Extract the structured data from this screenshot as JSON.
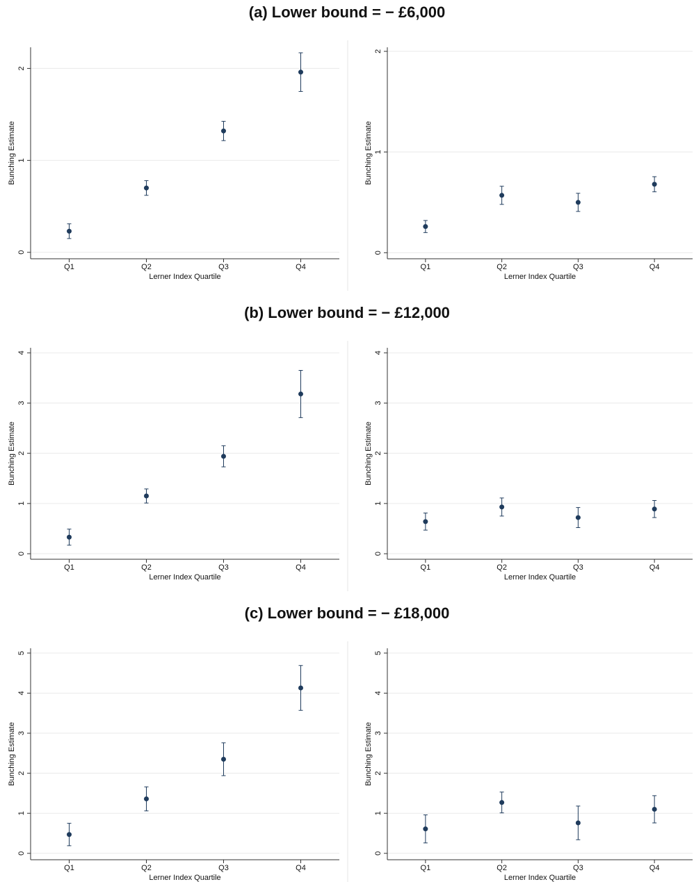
{
  "sections": [
    {
      "title": "(a) Lower bound = − £6,000"
    },
    {
      "title": "(b) Lower bound = − £12,000"
    },
    {
      "title": "(c) Lower bound = − £18,000"
    }
  ],
  "chart_data": [
    {
      "type": "errorbar",
      "ylabel": "Bunching Estimate",
      "xlabel": "Lerner Index Quartile",
      "categories": [
        "Q1",
        "Q2",
        "Q3",
        "Q4"
      ],
      "values": [
        0.23,
        0.7,
        1.32,
        1.96
      ],
      "errors": [
        0.08,
        0.08,
        0.105,
        0.21
      ],
      "ylim": [
        -0.07,
        2.23
      ],
      "yticks": [
        0,
        1,
        2
      ],
      "color": "#1f3b5c",
      "grid": true
    },
    {
      "type": "errorbar",
      "ylabel": "Bunching Estimate",
      "xlabel": "Lerner Index Quartile",
      "categories": [
        "Q1",
        "Q2",
        "Q3",
        "Q4"
      ],
      "values": [
        0.26,
        0.57,
        0.5,
        0.68
      ],
      "errors": [
        0.06,
        0.09,
        0.09,
        0.075
      ],
      "ylim": [
        -0.06,
        2.04
      ],
      "yticks": [
        0,
        1,
        2
      ],
      "color": "#1f3b5c",
      "grid": true
    },
    {
      "type": "errorbar",
      "ylabel": "Bunching Estimate",
      "xlabel": "Lerner Index Quartile",
      "categories": [
        "Q1",
        "Q2",
        "Q3",
        "Q4"
      ],
      "values": [
        0.33,
        1.15,
        1.94,
        3.18
      ],
      "errors": [
        0.16,
        0.14,
        0.21,
        0.47
      ],
      "ylim": [
        -0.11,
        4.1
      ],
      "yticks": [
        0,
        1,
        2,
        3,
        4
      ],
      "color": "#1f3b5c",
      "grid": true
    },
    {
      "type": "errorbar",
      "ylabel": "Bunching Estimate",
      "xlabel": "Lerner Index Quartile",
      "categories": [
        "Q1",
        "Q2",
        "Q3",
        "Q4"
      ],
      "values": [
        0.64,
        0.93,
        0.72,
        0.89
      ],
      "errors": [
        0.17,
        0.18,
        0.2,
        0.17
      ],
      "ylim": [
        -0.11,
        4.1
      ],
      "yticks": [
        0,
        1,
        2,
        3,
        4
      ],
      "color": "#1f3b5c",
      "grid": true
    },
    {
      "type": "errorbar",
      "ylabel": "Bunching Estimate",
      "xlabel": "Lerner Index Quartile",
      "categories": [
        "Q1",
        "Q2",
        "Q3",
        "Q4"
      ],
      "values": [
        0.47,
        1.36,
        2.35,
        4.13
      ],
      "errors": [
        0.28,
        0.3,
        0.41,
        0.56
      ],
      "ylim": [
        -0.16,
        5.12
      ],
      "yticks": [
        0,
        1,
        2,
        3,
        4,
        5
      ],
      "color": "#1f3b5c",
      "grid": true
    },
    {
      "type": "errorbar",
      "ylabel": "Bunching Estimate",
      "xlabel": "Lerner Index Quartile",
      "categories": [
        "Q1",
        "Q2",
        "Q3",
        "Q4"
      ],
      "values": [
        0.61,
        1.27,
        0.76,
        1.1
      ],
      "errors": [
        0.35,
        0.26,
        0.42,
        0.34
      ],
      "ylim": [
        -0.16,
        5.12
      ],
      "yticks": [
        0,
        1,
        2,
        3,
        4,
        5
      ],
      "color": "#1f3b5c",
      "grid": true
    }
  ]
}
